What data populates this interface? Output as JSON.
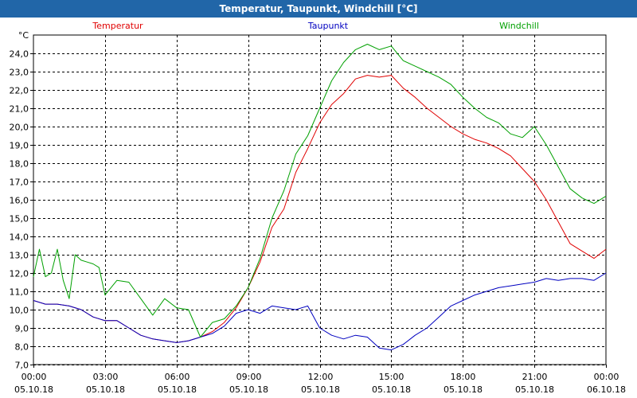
{
  "window": {
    "title": "Temperatur, Taupunkt, Windchill [°C]"
  },
  "chart_data": {
    "type": "line",
    "title": "Temperatur, Taupunkt, Windchill [°C]",
    "unit": "°C",
    "ylim": [
      7.0,
      25.0
    ],
    "yticks": [
      "7,0",
      "8,0",
      "9,0",
      "10,0",
      "11,0",
      "12,0",
      "13,0",
      "14,0",
      "15,0",
      "16,0",
      "17,0",
      "18,0",
      "19,0",
      "20,0",
      "21,0",
      "22,0",
      "23,0",
      "24,0"
    ],
    "xlim": [
      0,
      24
    ],
    "xticks": [
      {
        "hour": 0,
        "time": "00:00",
        "date": "05.10.18"
      },
      {
        "hour": 3,
        "time": "03:00",
        "date": "05.10.18"
      },
      {
        "hour": 6,
        "time": "06:00",
        "date": "05.10.18"
      },
      {
        "hour": 9,
        "time": "09:00",
        "date": "05.10.18"
      },
      {
        "hour": 12,
        "time": "12:00",
        "date": "05.10.18"
      },
      {
        "hour": 15,
        "time": "15:00",
        "date": "05.10.18"
      },
      {
        "hour": 18,
        "time": "18:00",
        "date": "05.10.18"
      },
      {
        "hour": 21,
        "time": "21:00",
        "date": "05.10.18"
      },
      {
        "hour": 24,
        "time": "00:00",
        "date": "06.10.18"
      }
    ],
    "grid": true,
    "legend": "top",
    "series": [
      {
        "name": "Temperatur",
        "color": "#e00000",
        "x": [
          0,
          0.5,
          1,
          1.5,
          2,
          2.5,
          3,
          3.5,
          4,
          4.5,
          5,
          5.5,
          6,
          6.5,
          7,
          7.5,
          8,
          8.5,
          9,
          9.5,
          10,
          10.5,
          11,
          11.5,
          12,
          12.5,
          13,
          13.5,
          14,
          14.5,
          15,
          15.5,
          16,
          16.5,
          17,
          17.5,
          18,
          18.5,
          19,
          19.5,
          20,
          20.5,
          21,
          21.5,
          22,
          22.5,
          23,
          23.5,
          24
        ],
        "y": [
          10.5,
          10.3,
          10.3,
          10.2,
          10.0,
          9.6,
          9.4,
          9.4,
          9.0,
          8.6,
          8.4,
          8.3,
          8.2,
          8.3,
          8.5,
          8.8,
          9.3,
          10.1,
          11.2,
          12.6,
          14.5,
          15.5,
          17.5,
          18.8,
          20.2,
          21.2,
          21.8,
          22.6,
          22.8,
          22.7,
          22.8,
          22.1,
          21.6,
          21.0,
          20.5,
          20.0,
          19.6,
          19.3,
          19.1,
          18.8,
          18.4,
          17.7,
          17.0,
          16.0,
          14.8,
          13.6,
          13.2,
          12.8,
          13.3
        ]
      },
      {
        "name": "Taupunkt",
        "color": "#0000c0",
        "x": [
          0,
          0.5,
          1,
          1.5,
          2,
          2.5,
          3,
          3.5,
          4,
          4.5,
          5,
          5.5,
          6,
          6.5,
          7,
          7.5,
          8,
          8.5,
          9,
          9.5,
          10,
          10.5,
          11,
          11.5,
          12,
          12.5,
          13,
          13.5,
          14,
          14.5,
          15,
          15.5,
          16,
          16.5,
          17,
          17.5,
          18,
          18.5,
          19,
          19.5,
          20,
          20.5,
          21,
          21.5,
          22,
          22.5,
          23,
          23.5,
          24
        ],
        "y": [
          10.5,
          10.3,
          10.3,
          10.2,
          10.0,
          9.6,
          9.4,
          9.4,
          9.0,
          8.6,
          8.4,
          8.3,
          8.2,
          8.3,
          8.5,
          8.7,
          9.1,
          9.8,
          10.0,
          9.8,
          10.2,
          10.1,
          10.0,
          10.2,
          9.0,
          8.6,
          8.4,
          8.6,
          8.5,
          7.9,
          7.8,
          8.1,
          8.6,
          9.0,
          9.6,
          10.2,
          10.5,
          10.8,
          11.0,
          11.2,
          11.3,
          11.4,
          11.5,
          11.7,
          11.6,
          11.7,
          11.7,
          11.6,
          12.0
        ]
      },
      {
        "name": "Windchill",
        "color": "#00a000",
        "x": [
          0,
          0.25,
          0.5,
          0.75,
          1,
          1.25,
          1.5,
          1.75,
          2,
          2.25,
          2.5,
          2.75,
          3,
          3.5,
          4,
          4.5,
          5,
          5.5,
          6,
          6.5,
          7,
          7.5,
          8,
          8.5,
          9,
          9.5,
          10,
          10.5,
          11,
          11.5,
          12,
          12.5,
          13,
          13.5,
          14,
          14.5,
          15,
          15.5,
          16,
          16.5,
          17,
          17.5,
          18,
          18.5,
          19,
          19.5,
          20,
          20.5,
          21,
          21.5,
          22,
          22.5,
          23,
          23.5,
          24
        ],
        "y": [
          11.8,
          13.3,
          11.8,
          12.0,
          13.3,
          11.6,
          10.6,
          13.0,
          12.7,
          12.6,
          12.5,
          12.3,
          10.8,
          11.6,
          11.5,
          10.6,
          9.7,
          10.6,
          10.1,
          10.0,
          8.5,
          9.3,
          9.5,
          10.2,
          11.2,
          12.8,
          15.0,
          16.5,
          18.5,
          19.5,
          21.0,
          22.5,
          23.5,
          24.2,
          24.5,
          24.2,
          24.4,
          23.6,
          23.3,
          23.0,
          22.7,
          22.3,
          21.6,
          21.0,
          20.5,
          20.2,
          19.6,
          19.4,
          20.0,
          19.0,
          17.8,
          16.6,
          16.1,
          15.8,
          16.2
        ]
      }
    ]
  }
}
